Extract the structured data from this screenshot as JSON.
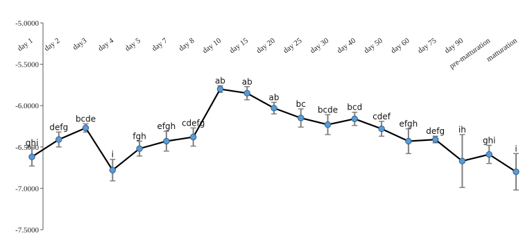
{
  "chart_data": {
    "type": "line",
    "title": "",
    "xlabel": "",
    "ylabel": "",
    "ylim": [
      -7.5,
      -5.0
    ],
    "yticks": [
      -5.0,
      -5.5,
      -6.0,
      -6.5,
      -7.0,
      -7.5
    ],
    "ytick_labels": [
      "-5.0000",
      "-5.5000",
      "-6.0000",
      "-6.5000",
      "-7.0000",
      "-7.5000"
    ],
    "x_axis_position": "top",
    "grid": false,
    "legend": false,
    "categories": [
      "day 1",
      "day 2",
      "day3",
      "day 4",
      "day 5",
      "day 7",
      "day 8",
      "day 10",
      "day 15",
      "day 20",
      "day 25",
      "day 30",
      "day 40",
      "day 50",
      "day 60",
      "day 75",
      "day 90",
      "pre-matturation",
      "matturation"
    ],
    "series": [
      {
        "values": [
          -6.62,
          -6.41,
          -6.27,
          -6.78,
          -6.52,
          -6.43,
          -6.38,
          -5.8,
          -5.85,
          -6.03,
          -6.15,
          -6.23,
          -6.16,
          -6.28,
          -6.43,
          -6.41,
          -6.67,
          -6.59,
          -6.8
        ],
        "errors": [
          0.11,
          0.09,
          0.05,
          0.13,
          0.09,
          0.12,
          0.11,
          0.04,
          0.08,
          0.07,
          0.11,
          0.12,
          0.08,
          0.09,
          0.15,
          0.04,
          0.32,
          0.11,
          0.22
        ],
        "labels": [
          "ghi",
          "defg",
          "bcde",
          "i",
          "fgh",
          "efgh",
          "cdefg",
          "ab",
          "ab",
          "ab",
          "bc",
          "bcde",
          "bcd",
          "cdef",
          "efgh",
          "defg",
          "ih",
          "ghi",
          "i"
        ],
        "color": "#5b9bd5",
        "line_color": "#000000",
        "error_color": "#7f7f7f"
      }
    ]
  }
}
